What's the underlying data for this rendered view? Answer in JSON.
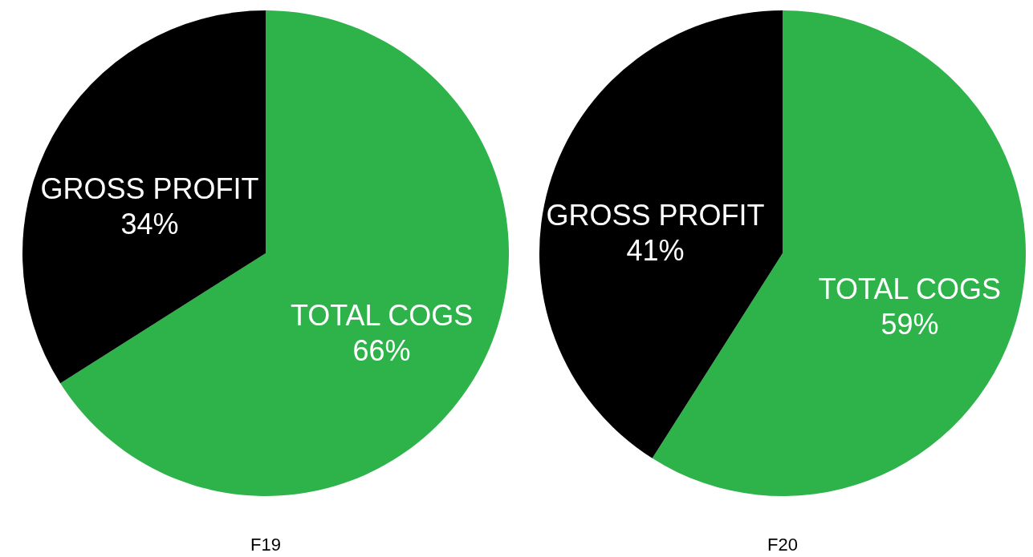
{
  "chart_data": [
    {
      "type": "pie",
      "title": "F19",
      "categories": [
        "TOTAL COGS",
        "GROSS PROFIT"
      ],
      "values": [
        66,
        34
      ],
      "colors": [
        "#2db34a",
        "#000000"
      ],
      "value_labels": [
        "66%",
        "34%"
      ]
    },
    {
      "type": "pie",
      "title": "F20",
      "categories": [
        "TOTAL COGS",
        "GROSS PROFIT"
      ],
      "values": [
        59,
        41
      ],
      "colors": [
        "#2db34a",
        "#000000"
      ],
      "value_labels": [
        "59%",
        "41%"
      ]
    }
  ]
}
